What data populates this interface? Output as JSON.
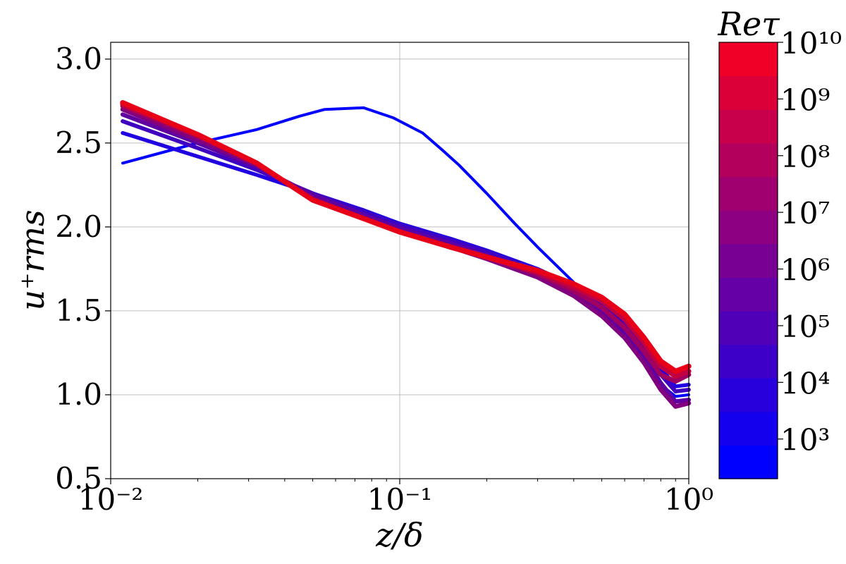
{
  "chart_data": {
    "type": "line",
    "xlabel": "z/δ",
    "ylabel": "u⁺rms",
    "xscale": "log",
    "xlim": [
      0.01,
      1
    ],
    "ylim": [
      0.5,
      3.1
    ],
    "grid": true,
    "x_tick_labels": [
      "10⁻²",
      "10⁻¹",
      "10⁰"
    ],
    "y_tick_labels": [
      "0.5",
      "1.0",
      "1.5",
      "2.0",
      "2.5",
      "3.0"
    ],
    "y_ticks": [
      0.5,
      1.0,
      1.5,
      2.0,
      2.5,
      3.0
    ],
    "x_ticks": [
      0.01,
      0.1,
      1
    ],
    "colorbar": {
      "title": "Reτ",
      "scale": "log",
      "range_exponents": [
        2.3,
        10.0
      ],
      "tick_labels": [
        "10³",
        "10⁴",
        "10⁵",
        "10⁶",
        "10⁷",
        "10⁸",
        "10⁹",
        "10¹⁰"
      ],
      "tick_exponents": [
        3,
        4,
        5,
        6,
        7,
        8,
        9,
        10
      ],
      "colors": [
        "#0000ff",
        "#1400ed",
        "#2800db",
        "#3c00c9",
        "#5000b7",
        "#6400a5",
        "#780093",
        "#8c0081",
        "#a0006f",
        "#b4005d",
        "#c8004b",
        "#dc0039",
        "#f00027"
      ]
    },
    "series": [
      {
        "color": "#0000ff",
        "x": [
          0.011,
          0.02,
          0.032,
          0.045,
          0.055,
          0.075,
          0.095,
          0.12,
          0.14,
          0.16,
          0.2,
          0.25,
          0.3,
          0.4,
          0.5,
          0.6,
          0.7,
          0.8,
          0.9,
          1.0
        ],
        "y": [
          2.38,
          2.5,
          2.58,
          2.66,
          2.7,
          2.71,
          2.65,
          2.56,
          2.46,
          2.37,
          2.2,
          2.02,
          1.88,
          1.67,
          1.5,
          1.35,
          1.2,
          1.06,
          0.99,
          1.0
        ]
      },
      {
        "color": "#2000e0",
        "x": [
          0.011,
          0.02,
          0.032,
          0.05,
          0.075,
          0.1,
          0.15,
          0.2,
          0.3,
          0.4,
          0.5,
          0.6,
          0.7,
          0.8,
          0.9,
          1.0
        ],
        "y": [
          2.56,
          2.42,
          2.31,
          2.2,
          2.1,
          2.02,
          1.93,
          1.86,
          1.75,
          1.65,
          1.55,
          1.43,
          1.3,
          1.16,
          1.05,
          1.06
        ]
      },
      {
        "color": "#4000c0",
        "x": [
          0.011,
          0.02,
          0.032,
          0.05,
          0.075,
          0.1,
          0.15,
          0.2,
          0.3,
          0.4,
          0.5,
          0.6,
          0.7,
          0.8,
          0.9,
          1.0
        ],
        "y": [
          2.63,
          2.47,
          2.34,
          2.2,
          2.09,
          2.01,
          1.92,
          1.85,
          1.74,
          1.64,
          1.53,
          1.41,
          1.27,
          1.12,
          1.02,
          1.03
        ]
      },
      {
        "color": "#6000a0",
        "x": [
          0.011,
          0.02,
          0.032,
          0.05,
          0.075,
          0.1,
          0.15,
          0.2,
          0.3,
          0.4,
          0.5,
          0.6,
          0.7,
          0.8,
          0.9,
          1.0
        ],
        "y": [
          2.67,
          2.5,
          2.36,
          2.19,
          2.07,
          1.99,
          1.9,
          1.83,
          1.72,
          1.62,
          1.5,
          1.38,
          1.23,
          1.07,
          0.96,
          0.97
        ]
      },
      {
        "color": "#800080",
        "x": [
          0.011,
          0.02,
          0.032,
          0.05,
          0.075,
          0.1,
          0.15,
          0.2,
          0.3,
          0.4,
          0.5,
          0.6,
          0.7,
          0.8,
          0.9,
          1.0
        ],
        "y": [
          2.7,
          2.52,
          2.37,
          2.17,
          2.05,
          1.97,
          1.88,
          1.81,
          1.7,
          1.59,
          1.47,
          1.34,
          1.19,
          1.03,
          0.93,
          0.95
        ]
      },
      {
        "color": "#a00060",
        "x": [
          0.011,
          0.02,
          0.032,
          0.05,
          0.075,
          0.1,
          0.15,
          0.2,
          0.3,
          0.4,
          0.5,
          0.6,
          0.7,
          0.8,
          0.9,
          1.0
        ],
        "y": [
          2.72,
          2.54,
          2.38,
          2.16,
          2.05,
          1.97,
          1.88,
          1.82,
          1.72,
          1.62,
          1.52,
          1.4,
          1.26,
          1.12,
          1.08,
          1.12
        ]
      },
      {
        "color": "#c00040",
        "x": [
          0.011,
          0.02,
          0.032,
          0.05,
          0.075,
          0.1,
          0.15,
          0.2,
          0.3,
          0.4,
          0.5,
          0.6,
          0.7,
          0.8,
          0.9,
          1.0
        ],
        "y": [
          2.73,
          2.55,
          2.38,
          2.16,
          2.05,
          1.97,
          1.88,
          1.82,
          1.73,
          1.64,
          1.56,
          1.45,
          1.31,
          1.17,
          1.11,
          1.14
        ]
      },
      {
        "color": "#e80018",
        "x": [
          0.011,
          0.02,
          0.032,
          0.05,
          0.075,
          0.1,
          0.15,
          0.2,
          0.3,
          0.4,
          0.5,
          0.6,
          0.7,
          0.8,
          0.9,
          1.0
        ],
        "y": [
          2.74,
          2.55,
          2.38,
          2.16,
          2.05,
          1.97,
          1.88,
          1.82,
          1.74,
          1.66,
          1.58,
          1.48,
          1.34,
          1.2,
          1.14,
          1.17
        ]
      }
    ]
  }
}
